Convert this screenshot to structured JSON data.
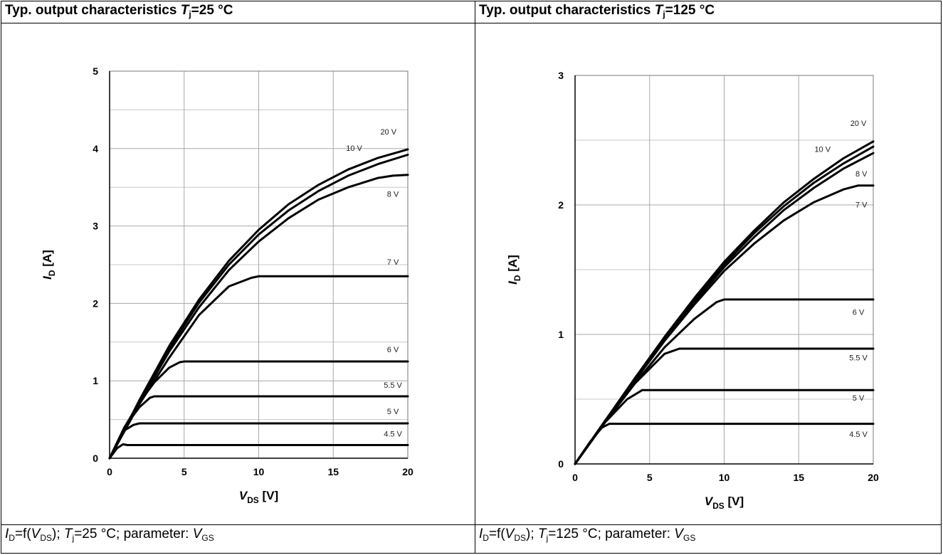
{
  "panels": [
    {
      "header": {
        "prefix": "Typ. output characteristics ",
        "sym": "T",
        "sub": "j",
        "suffix": "=25 °C"
      },
      "footer": {
        "id": "I",
        "id_sub": "D",
        "mid1": "=f(",
        "v": "V",
        "v_sub": "DS",
        "mid2": "); ",
        "t": "T",
        "t_sub": "j",
        "rest": "=25 °C; parameter: ",
        "vgs": "V",
        "vgs_sub": "GS"
      }
    },
    {
      "header": {
        "prefix": "Typ. output characteristics ",
        "sym": "T",
        "sub": "j",
        "suffix": "=125 °C"
      },
      "footer": {
        "id": "I",
        "id_sub": "D",
        "mid1": "=f(",
        "v": "V",
        "v_sub": "DS",
        "mid2": "); ",
        "t": "T",
        "t_sub": "j",
        "rest": "=125 °C; parameter: ",
        "vgs": "V",
        "vgs_sub": "GS"
      }
    }
  ],
  "chart_data": [
    {
      "type": "line",
      "title": "Typ. output characteristics Tj=25 °C",
      "xlabel": "VDS [V]",
      "ylabel": "ID [A]",
      "xlim": [
        0,
        20
      ],
      "ylim": [
        0,
        5
      ],
      "xticks": [
        "0",
        "5",
        "10",
        "15",
        "20"
      ],
      "yticks": [
        "0",
        "1",
        "2",
        "3",
        "4",
        "5"
      ],
      "grid": true,
      "series": [
        {
          "name": "20 V",
          "x": [
            0,
            2,
            4,
            6,
            8,
            10,
            12,
            14,
            16,
            18,
            20
          ],
          "y": [
            0,
            0.75,
            1.45,
            2.05,
            2.55,
            2.95,
            3.28,
            3.53,
            3.73,
            3.88,
            3.99
          ]
        },
        {
          "name": "10 V",
          "x": [
            0,
            2,
            4,
            6,
            8,
            10,
            12,
            14,
            16,
            18,
            20
          ],
          "y": [
            0,
            0.74,
            1.42,
            2.01,
            2.5,
            2.89,
            3.2,
            3.45,
            3.65,
            3.8,
            3.92
          ]
        },
        {
          "name": "8 V",
          "x": [
            0,
            2,
            4,
            6,
            8,
            10,
            12,
            14,
            16,
            18,
            19,
            20
          ],
          "y": [
            0,
            0.72,
            1.38,
            1.95,
            2.43,
            2.8,
            3.1,
            3.34,
            3.5,
            3.62,
            3.65,
            3.66
          ]
        },
        {
          "name": "7 V",
          "x": [
            0,
            2,
            4,
            6,
            8,
            9.5,
            10,
            12,
            15,
            20
          ],
          "y": [
            0,
            0.7,
            1.3,
            1.85,
            2.22,
            2.33,
            2.35,
            2.35,
            2.35,
            2.35
          ]
        },
        {
          "name": "6 V",
          "x": [
            0,
            1,
            2,
            3,
            4,
            4.7,
            5,
            10,
            20
          ],
          "y": [
            0,
            0.4,
            0.72,
            0.98,
            1.17,
            1.24,
            1.25,
            1.25,
            1.25
          ]
        },
        {
          "name": "5.5 V",
          "x": [
            0,
            1,
            2,
            2.7,
            3,
            10,
            20
          ],
          "y": [
            0,
            0.4,
            0.66,
            0.78,
            0.8,
            0.8,
            0.8
          ]
        },
        {
          "name": "5 V",
          "x": [
            0,
            1,
            1.6,
            2,
            10,
            20
          ],
          "y": [
            0,
            0.36,
            0.43,
            0.45,
            0.45,
            0.45
          ]
        },
        {
          "name": "4.5 V",
          "x": [
            0,
            0.5,
            0.9,
            1.2,
            2,
            10,
            20
          ],
          "y": [
            0,
            0.13,
            0.18,
            0.17,
            0.17,
            0.17,
            0.17
          ]
        }
      ]
    },
    {
      "type": "line",
      "title": "Typ. output characteristics Tj=125 °C",
      "xlabel": "VDS [V]",
      "ylabel": "ID [A]",
      "xlim": [
        0,
        20
      ],
      "ylim": [
        0,
        3
      ],
      "xticks": [
        "0",
        "5",
        "10",
        "15",
        "20"
      ],
      "yticks": [
        "0",
        "1",
        "2",
        "3"
      ],
      "grid": true,
      "series": [
        {
          "name": "20 V",
          "x": [
            0,
            2,
            4,
            6,
            8,
            10,
            12,
            14,
            16,
            18,
            20
          ],
          "y": [
            0,
            0.33,
            0.66,
            0.98,
            1.28,
            1.56,
            1.8,
            2.02,
            2.2,
            2.36,
            2.49
          ]
        },
        {
          "name": "10 V",
          "x": [
            0,
            2,
            4,
            6,
            8,
            10,
            12,
            14,
            16,
            18,
            20
          ],
          "y": [
            0,
            0.33,
            0.65,
            0.97,
            1.27,
            1.54,
            1.78,
            1.99,
            2.17,
            2.32,
            2.45
          ]
        },
        {
          "name": "8 V",
          "x": [
            0,
            2,
            4,
            6,
            8,
            10,
            12,
            14,
            16,
            18,
            20
          ],
          "y": [
            0,
            0.33,
            0.65,
            0.96,
            1.25,
            1.52,
            1.75,
            1.96,
            2.13,
            2.28,
            2.4
          ]
        },
        {
          "name": "7 V",
          "x": [
            0,
            2,
            4,
            6,
            8,
            10,
            12,
            14,
            16,
            18,
            19,
            20
          ],
          "y": [
            0,
            0.33,
            0.64,
            0.95,
            1.23,
            1.49,
            1.7,
            1.88,
            2.02,
            2.12,
            2.15,
            2.15
          ]
        },
        {
          "name": "6 V",
          "x": [
            0,
            2,
            4,
            6,
            8,
            9.5,
            10,
            15,
            20
          ],
          "y": [
            0,
            0.32,
            0.62,
            0.9,
            1.12,
            1.25,
            1.27,
            1.27,
            1.27
          ]
        },
        {
          "name": "5.5 V",
          "x": [
            0,
            2,
            4,
            6,
            7,
            10,
            20
          ],
          "y": [
            0,
            0.32,
            0.62,
            0.85,
            0.89,
            0.89,
            0.89
          ]
        },
        {
          "name": "5 V",
          "x": [
            0,
            2,
            3.5,
            4.5,
            10,
            20
          ],
          "y": [
            0,
            0.32,
            0.5,
            0.57,
            0.57,
            0.57
          ]
        },
        {
          "name": "4.5 V",
          "x": [
            0,
            1,
            1.8,
            2.3,
            10,
            20
          ],
          "y": [
            0,
            0.17,
            0.28,
            0.31,
            0.31,
            0.31
          ]
        }
      ]
    }
  ]
}
